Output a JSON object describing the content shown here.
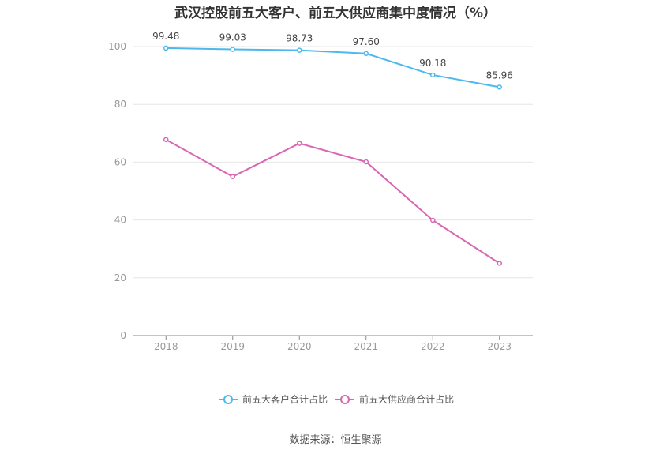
{
  "title": "武汉控股前五大客户、前五大供应商集中度情况（%）",
  "source": "数据来源：恒生聚源",
  "chart_data": {
    "type": "line",
    "title": "武汉控股前五大客户、前五大供应商集中度情况（%）",
    "x": [
      "2018",
      "2019",
      "2020",
      "2021",
      "2022",
      "2023"
    ],
    "y_ticks": [
      0,
      20,
      40,
      60,
      80,
      100
    ],
    "ylim": [
      0,
      100
    ],
    "grid": true,
    "legend_position": "bottom",
    "series": [
      {
        "name": "前五大客户合计占比",
        "color": "#4DB8EC",
        "values": [
          99.48,
          99.03,
          98.73,
          97.6,
          90.18,
          85.96
        ],
        "labels": [
          "99.48",
          "99.03",
          "98.73",
          "97.60",
          "90.18",
          "85.96"
        ]
      },
      {
        "name": "前五大供应商合计占比",
        "color": "#D966B3",
        "values": [
          67.8,
          55.0,
          66.5,
          60.1,
          39.9,
          25.0
        ]
      }
    ]
  }
}
